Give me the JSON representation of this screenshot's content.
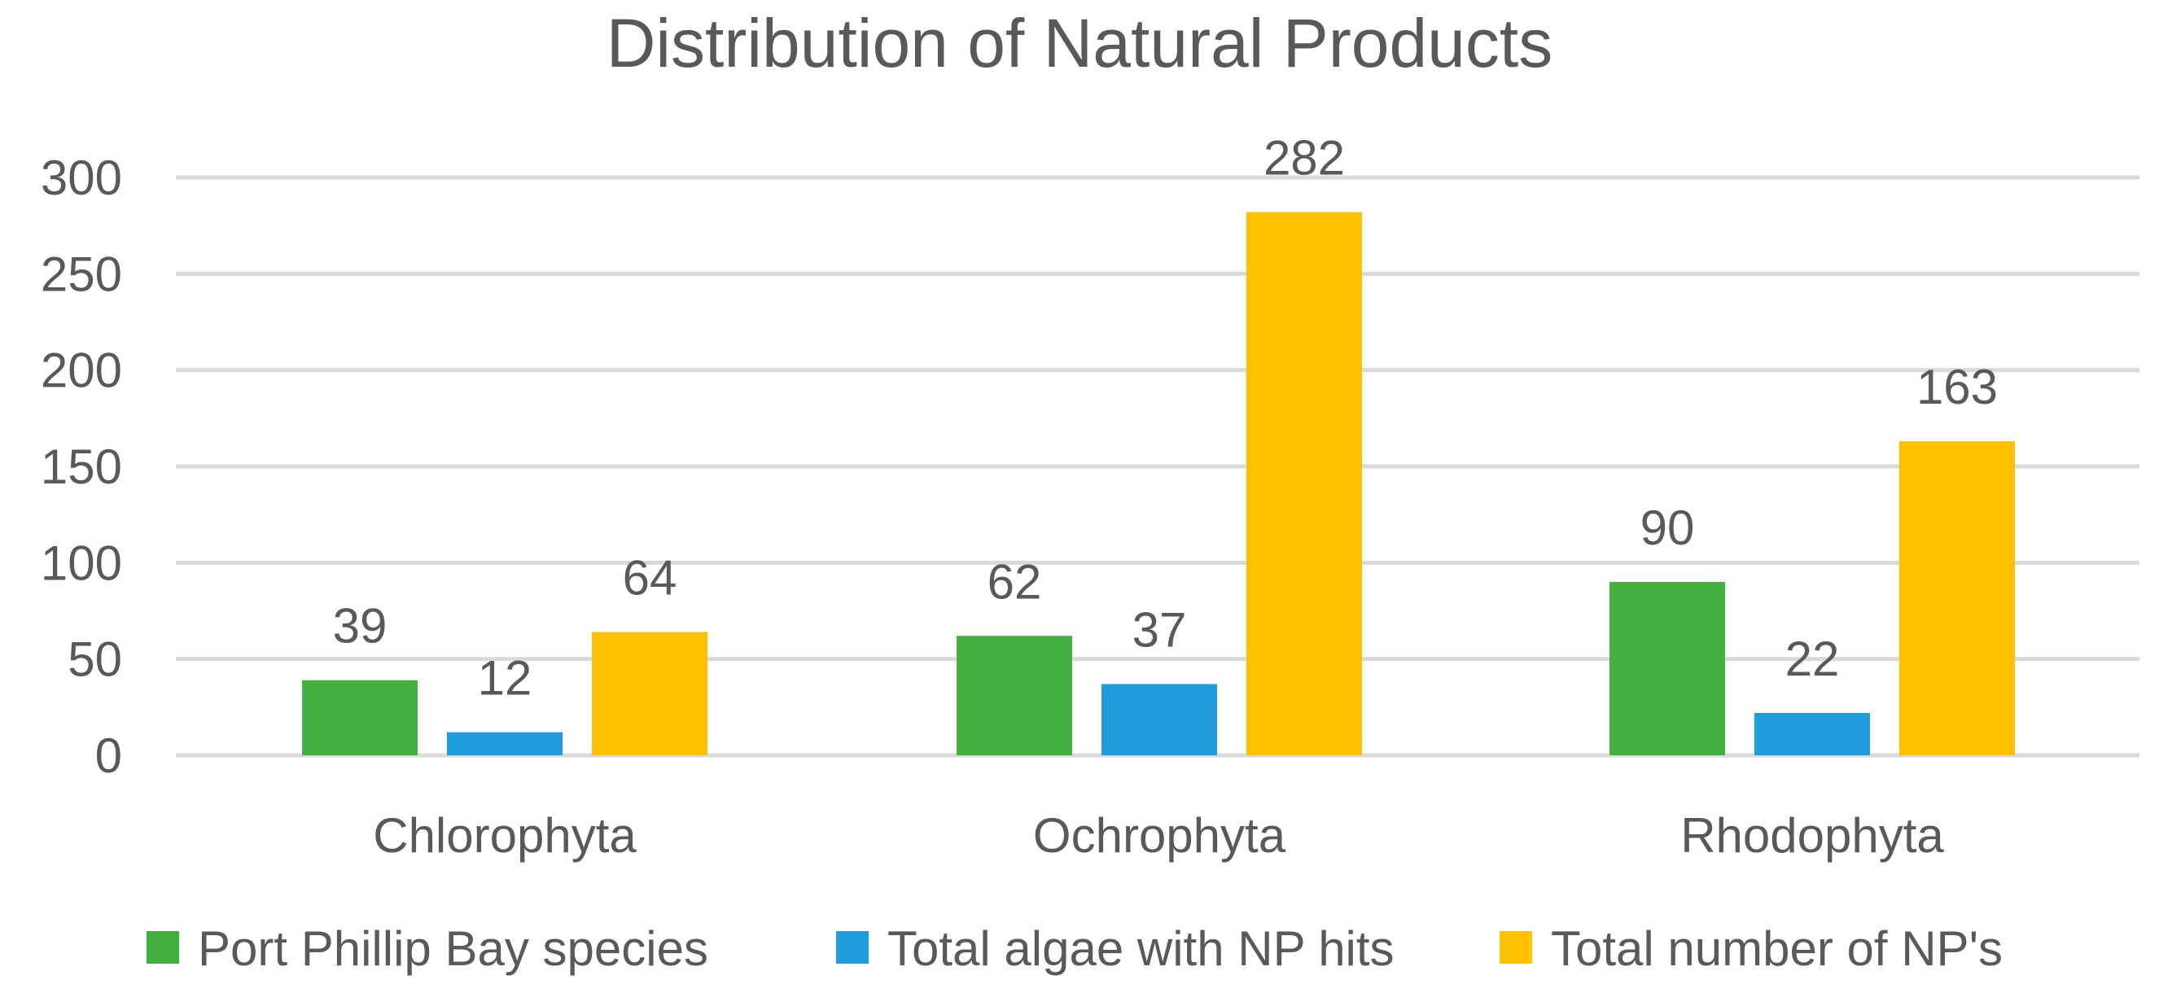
{
  "chart_data": {
    "type": "bar",
    "title": "Distribution of Natural Products",
    "categories": [
      "Chlorophyta",
      "Ochrophyta",
      "Rhodophyta"
    ],
    "series": [
      {
        "name": "Port Phillip Bay species",
        "values": [
          39,
          62,
          90
        ],
        "color": "#43b03f"
      },
      {
        "name": "Total algae with NP hits",
        "values": [
          12,
          37,
          22
        ],
        "color": "#1e9cdc"
      },
      {
        "name": "Total number of NP's",
        "values": [
          64,
          282,
          163
        ],
        "color": "#ffc000"
      }
    ],
    "ylim": [
      0,
      300
    ],
    "yticks": [
      0,
      50,
      100,
      150,
      200,
      250,
      300
    ],
    "xlabel": "",
    "ylabel": "",
    "grid": true,
    "legend": "bottom",
    "data_labels": true
  }
}
